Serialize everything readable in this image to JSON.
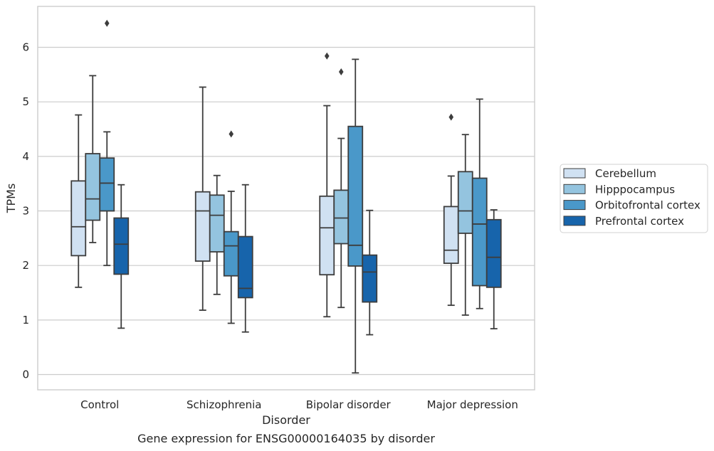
{
  "chart_data": {
    "type": "box",
    "xlabel": "Disorder",
    "ylabel": "TPMs",
    "caption": "Gene expression for ENSG00000164035 by disorder",
    "ylim": [
      -0.28,
      6.75
    ],
    "yticks": [
      0,
      1,
      2,
      3,
      4,
      5,
      6
    ],
    "grid": "horizontal",
    "legend_position": "right",
    "categories": [
      "Control",
      "Schizophrenia",
      "Bipolar disorder",
      "Major depression"
    ],
    "series": [
      {
        "name": "Cerebellum",
        "color": "#d0e1f2",
        "boxes": [
          {
            "whislo": 1.6,
            "q1": 2.18,
            "med": 2.71,
            "q3": 3.55,
            "whishi": 4.76,
            "fliers": []
          },
          {
            "whislo": 1.18,
            "q1": 2.08,
            "med": 3.0,
            "q3": 3.35,
            "whishi": 5.27,
            "fliers": []
          },
          {
            "whislo": 1.06,
            "q1": 1.83,
            "med": 2.69,
            "q3": 3.27,
            "whishi": 4.93,
            "fliers": [
              5.84
            ]
          },
          {
            "whislo": 1.27,
            "q1": 2.04,
            "med": 2.28,
            "q3": 3.08,
            "whishi": 3.64,
            "fliers": [
              4.72
            ]
          }
        ]
      },
      {
        "name": "Hipppocampus",
        "color": "#94c4df",
        "boxes": [
          {
            "whislo": 2.42,
            "q1": 2.83,
            "med": 3.22,
            "q3": 4.05,
            "whishi": 5.48,
            "fliers": []
          },
          {
            "whislo": 1.47,
            "q1": 2.25,
            "med": 2.92,
            "q3": 3.29,
            "whishi": 3.65,
            "fliers": []
          },
          {
            "whislo": 1.23,
            "q1": 2.4,
            "med": 2.87,
            "q3": 3.38,
            "whishi": 4.33,
            "fliers": [
              5.55
            ]
          },
          {
            "whislo": 1.09,
            "q1": 2.59,
            "med": 3.0,
            "q3": 3.72,
            "whishi": 4.4,
            "fliers": []
          }
        ]
      },
      {
        "name": "Orbitofrontal cortex",
        "color": "#4a98c9",
        "boxes": [
          {
            "whislo": 2.0,
            "q1": 3.0,
            "med": 3.51,
            "q3": 3.97,
            "whishi": 4.45,
            "fliers": [
              6.44
            ]
          },
          {
            "whislo": 0.94,
            "q1": 1.81,
            "med": 2.36,
            "q3": 2.62,
            "whishi": 3.36,
            "fliers": [
              4.41
            ]
          },
          {
            "whislo": 0.03,
            "q1": 1.99,
            "med": 2.37,
            "q3": 4.55,
            "whishi": 5.78,
            "fliers": []
          },
          {
            "whislo": 1.21,
            "q1": 1.63,
            "med": 2.76,
            "q3": 3.6,
            "whishi": 5.05,
            "fliers": []
          }
        ]
      },
      {
        "name": "Prefrontal cortex",
        "color": "#1764ab",
        "boxes": [
          {
            "whislo": 0.85,
            "q1": 1.84,
            "med": 2.39,
            "q3": 2.87,
            "whishi": 3.48,
            "fliers": []
          },
          {
            "whislo": 0.78,
            "q1": 1.41,
            "med": 1.58,
            "q3": 2.53,
            "whishi": 3.48,
            "fliers": []
          },
          {
            "whislo": 0.73,
            "q1": 1.33,
            "med": 1.88,
            "q3": 2.19,
            "whishi": 3.01,
            "fliers": []
          },
          {
            "whislo": 0.84,
            "q1": 1.6,
            "med": 2.15,
            "q3": 2.84,
            "whishi": 3.02,
            "fliers": []
          }
        ]
      }
    ]
  }
}
